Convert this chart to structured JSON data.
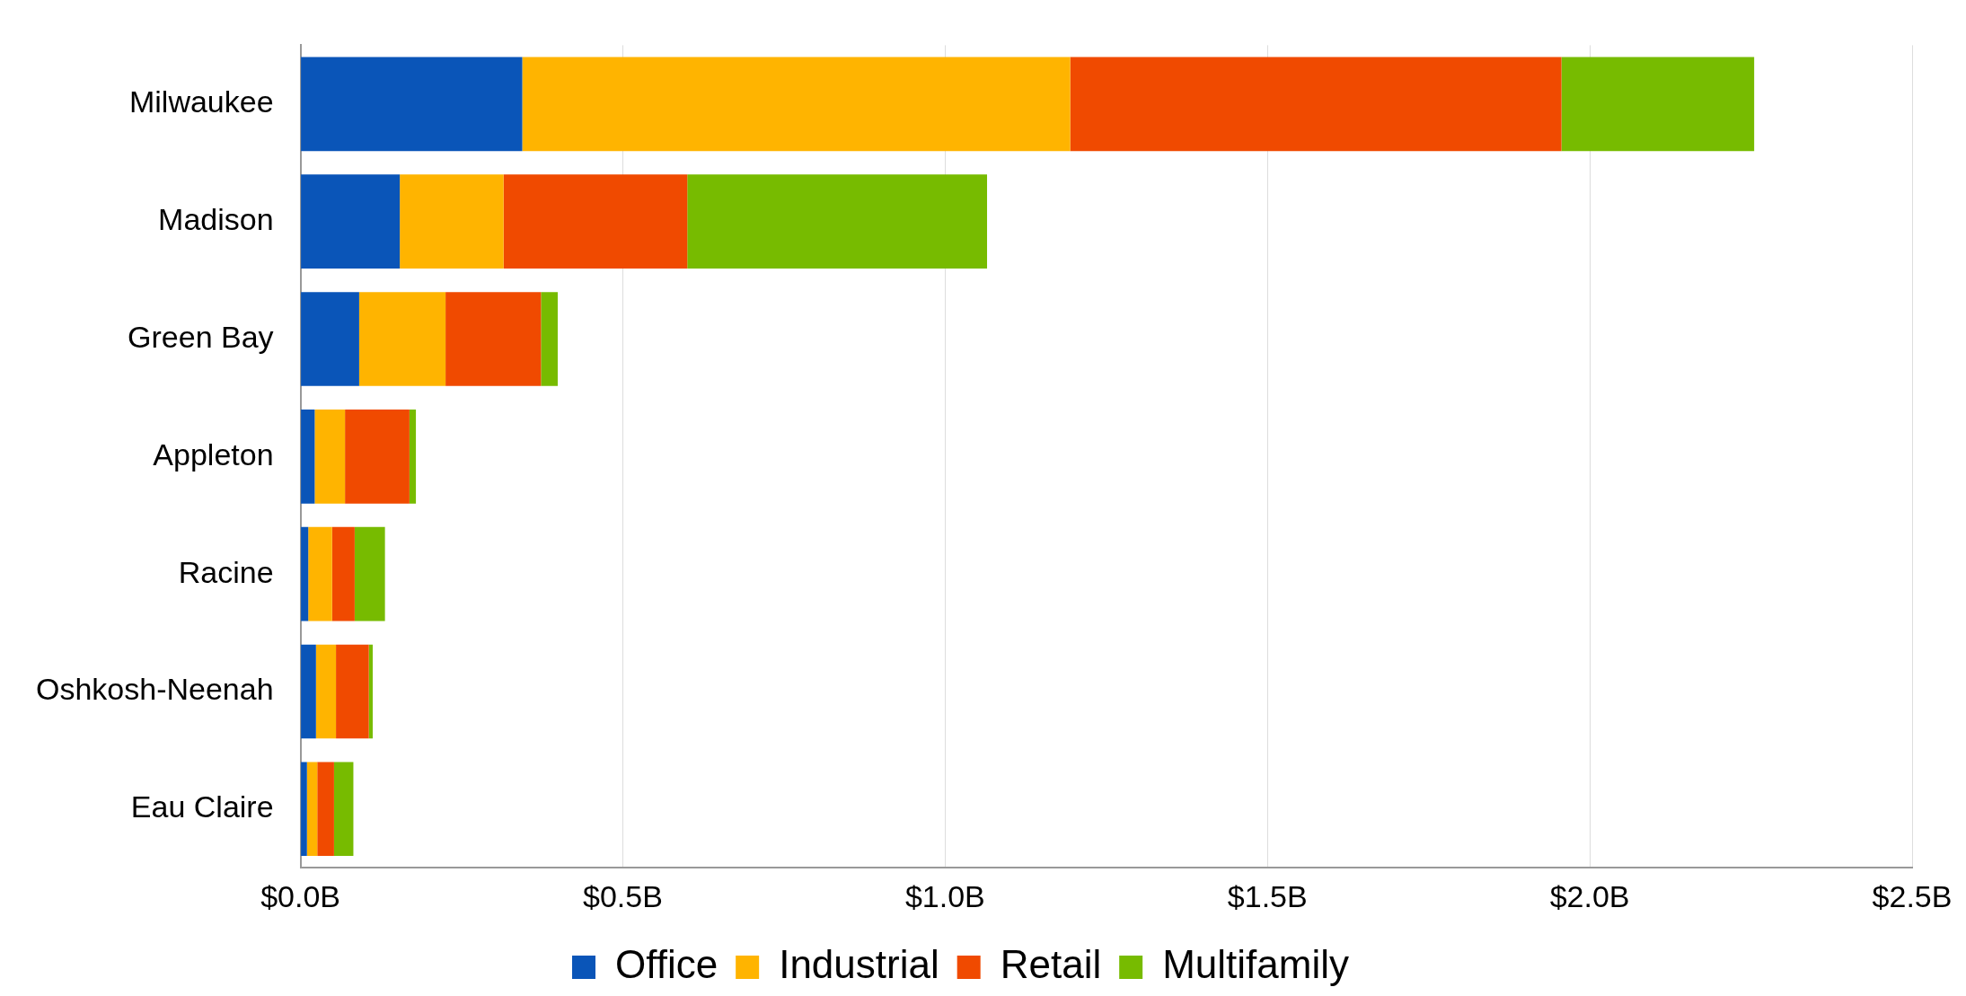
{
  "chart_data": {
    "type": "bar",
    "orientation": "horizontal",
    "stacked": true,
    "categories": [
      "Milwaukee",
      "Madison",
      "Green Bay",
      "Appleton",
      "Racine",
      "Oshkosh-Neenah",
      "Eau Claire"
    ],
    "series": [
      {
        "name": "Office",
        "color": "#0a55b8",
        "values": [
          0.344,
          0.154,
          0.091,
          0.022,
          0.012,
          0.024,
          0.01
        ]
      },
      {
        "name": "Industrial",
        "color": "#ffb400",
        "values": [
          0.85,
          0.161,
          0.134,
          0.047,
          0.037,
          0.031,
          0.016
        ]
      },
      {
        "name": "Retail",
        "color": "#f04a00",
        "values": [
          0.762,
          0.285,
          0.148,
          0.1,
          0.035,
          0.051,
          0.026
        ]
      },
      {
        "name": "Multifamily",
        "color": "#77bb00",
        "values": [
          0.299,
          0.465,
          0.026,
          0.01,
          0.047,
          0.006,
          0.03
        ]
      }
    ],
    "xlim": [
      0,
      2.5
    ],
    "xticks": [
      {
        "value": 0,
        "label": "$0.0B"
      },
      {
        "value": 0.5,
        "label": "$0.5B"
      },
      {
        "value": 1,
        "label": "$1.0B"
      },
      {
        "value": 1.5,
        "label": "$1.5B"
      },
      {
        "value": 2,
        "label": "$2.0B"
      },
      {
        "value": 2.5,
        "label": "$2.5B"
      }
    ],
    "grid": "x",
    "legend": "bottom"
  }
}
